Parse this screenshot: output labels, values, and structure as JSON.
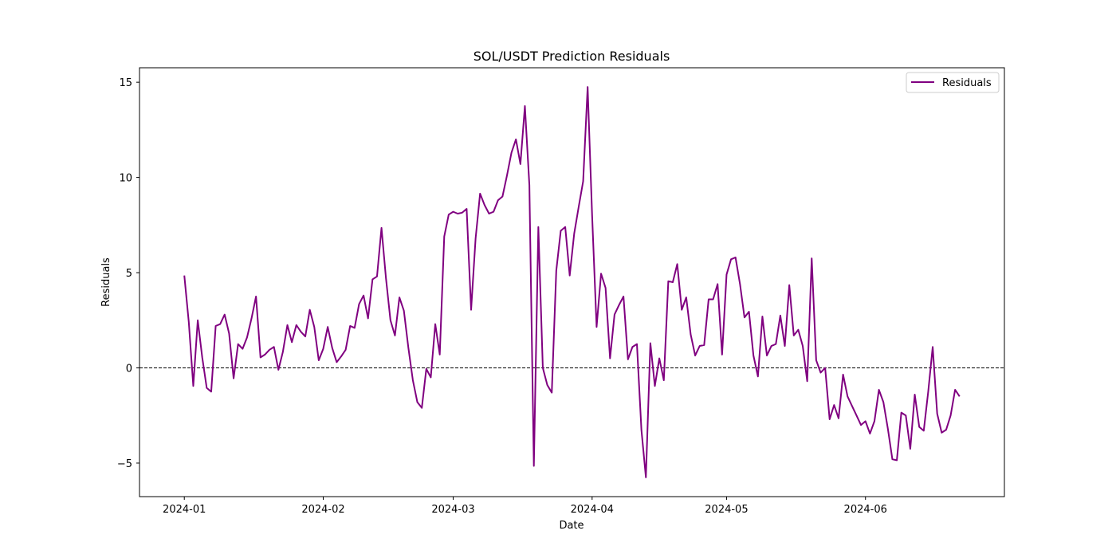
{
  "chart_data": {
    "type": "line",
    "title": "SOL/USDT Prediction Residuals",
    "xlabel": "Date",
    "ylabel": "Residuals",
    "x_start": "2024-01-01",
    "x_end": "2024-06-22",
    "xlim": [
      "2023-12-22",
      "2024-07-02"
    ],
    "ylim": [
      -6.76,
      15.76
    ],
    "x_ticks": [
      "2024-01-01",
      "2024-02-01",
      "2024-03-01",
      "2024-04-01",
      "2024-05-01",
      "2024-06-01"
    ],
    "x_tick_labels": [
      "2024-01",
      "2024-02",
      "2024-03",
      "2024-04",
      "2024-05",
      "2024-06"
    ],
    "y_ticks": [
      -5,
      0,
      5,
      10,
      15
    ],
    "y_tick_labels": [
      "−5",
      "0",
      "5",
      "10",
      "15"
    ],
    "reference_line": {
      "y": 0,
      "style": "dashed",
      "color": "#000000"
    },
    "legend": {
      "position": "top-right"
    },
    "series": [
      {
        "name": "Residuals",
        "color": "#800080",
        "values": [
          4.85,
          2.4,
          -0.95,
          2.5,
          0.55,
          -1.05,
          -1.25,
          2.2,
          2.3,
          2.8,
          1.8,
          -0.55,
          1.25,
          1.0,
          1.6,
          2.6,
          3.75,
          0.55,
          0.7,
          0.95,
          1.1,
          -0.1,
          0.85,
          2.25,
          1.35,
          2.25,
          1.9,
          1.65,
          3.05,
          2.15,
          0.4,
          1.0,
          2.15,
          1.05,
          0.3,
          0.6,
          0.95,
          2.2,
          2.1,
          3.35,
          3.8,
          2.6,
          4.65,
          4.8,
          7.35,
          4.7,
          2.5,
          1.7,
          3.7,
          3.0,
          1.05,
          -0.65,
          -1.8,
          -2.1,
          -0.05,
          -0.5,
          2.3,
          0.7,
          6.9,
          8.05,
          8.2,
          8.1,
          8.15,
          8.35,
          3.05,
          6.8,
          9.15,
          8.55,
          8.1,
          8.2,
          8.8,
          9.0,
          10.1,
          11.3,
          12.0,
          10.7,
          13.75,
          9.6,
          -5.15,
          7.4,
          0.0,
          -0.9,
          -1.3,
          5.1,
          7.2,
          7.4,
          4.85,
          7.05,
          8.45,
          9.8,
          14.75,
          8.0,
          2.15,
          4.95,
          4.2,
          0.5,
          2.8,
          3.3,
          3.75,
          0.45,
          1.1,
          1.25,
          -3.25,
          -5.75,
          1.3,
          -0.95,
          0.5,
          -0.65,
          4.55,
          4.5,
          5.45,
          3.05,
          3.7,
          1.75,
          0.65,
          1.15,
          1.2,
          3.6,
          3.6,
          4.4,
          0.7,
          4.9,
          5.7,
          5.8,
          4.4,
          2.65,
          2.95,
          0.65,
          -0.45,
          2.7,
          0.65,
          1.15,
          1.25,
          2.75,
          1.15,
          4.35,
          1.7,
          2.0,
          1.15,
          -0.7,
          5.75,
          0.4,
          -0.25,
          0.0,
          -2.7,
          -1.95,
          -2.65,
          -0.35,
          -1.5,
          -2.0,
          -2.5,
          -3.0,
          -2.8,
          -3.45,
          -2.8,
          -1.15,
          -1.8,
          -3.2,
          -4.8,
          -4.85,
          -2.35,
          -2.5,
          -4.25,
          -1.4,
          -3.1,
          -3.3,
          -1.25,
          1.1,
          -2.4,
          -3.4,
          -3.25,
          -2.5,
          -1.15,
          -1.5
        ]
      }
    ]
  }
}
